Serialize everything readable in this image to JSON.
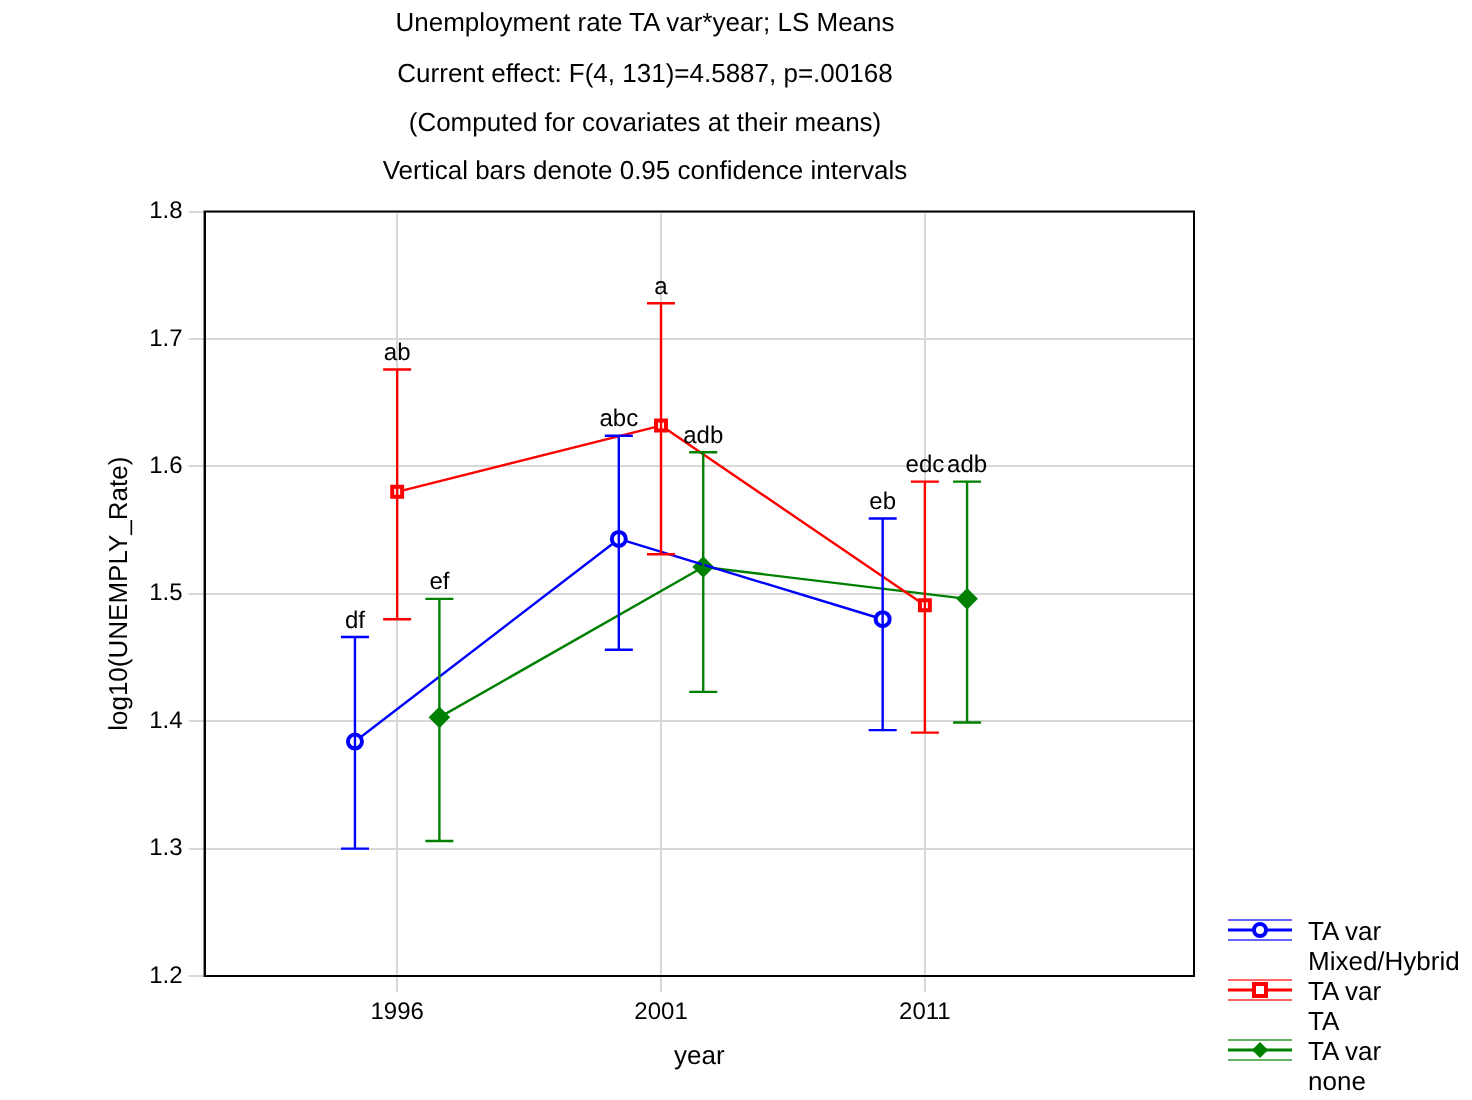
{
  "chart_data": {
    "type": "line",
    "title": "Unemployment rate TA var*year; LS Means",
    "subtitle": "Current effect: F(4, 131)=4.5887, p=.00168",
    "annotations": [
      "(Computed for covariates at their means)",
      "Vertical bars denote 0.95 confidence intervals",
      "df",
      "abc",
      "eb",
      "ab",
      "a",
      "edc",
      "ef",
      "adb",
      "adb"
    ],
    "xlabel": "year",
    "ylabel": "log10(UNEMPLY_Rate)",
    "categories": [
      "1996",
      "2001",
      "2011"
    ],
    "series": [
      {
        "name": "TA var Mixed/Hybrid",
        "color": "#0000ff",
        "marker": "circle",
        "values": [
          1.384,
          1.543,
          1.48
        ],
        "errors": [
          [
            1.3,
            1.466
          ],
          [
            1.456,
            1.624
          ],
          [
            1.393,
            1.559
          ]
        ]
      },
      {
        "name": "TA var TA",
        "color": "#ff0000",
        "marker": "square",
        "values": [
          1.58,
          1.632,
          1.491
        ],
        "errors": [
          [
            1.48,
            1.676
          ],
          [
            1.531,
            1.728
          ],
          [
            1.391,
            1.588
          ]
        ]
      },
      {
        "name": "TA var none",
        "color": "#008000",
        "marker": "diamond",
        "values": [
          1.403,
          1.521,
          1.496
        ],
        "errors": [
          [
            1.306,
            1.496
          ],
          [
            1.423,
            1.611
          ],
          [
            1.399,
            1.588
          ]
        ]
      }
    ],
    "ylim": [
      1.2,
      1.8
    ],
    "yticks": [
      1.2,
      1.3,
      1.4,
      1.5,
      1.6,
      1.7,
      1.8
    ],
    "grid": true,
    "legend": "bottom right",
    "line_style": "solid"
  }
}
